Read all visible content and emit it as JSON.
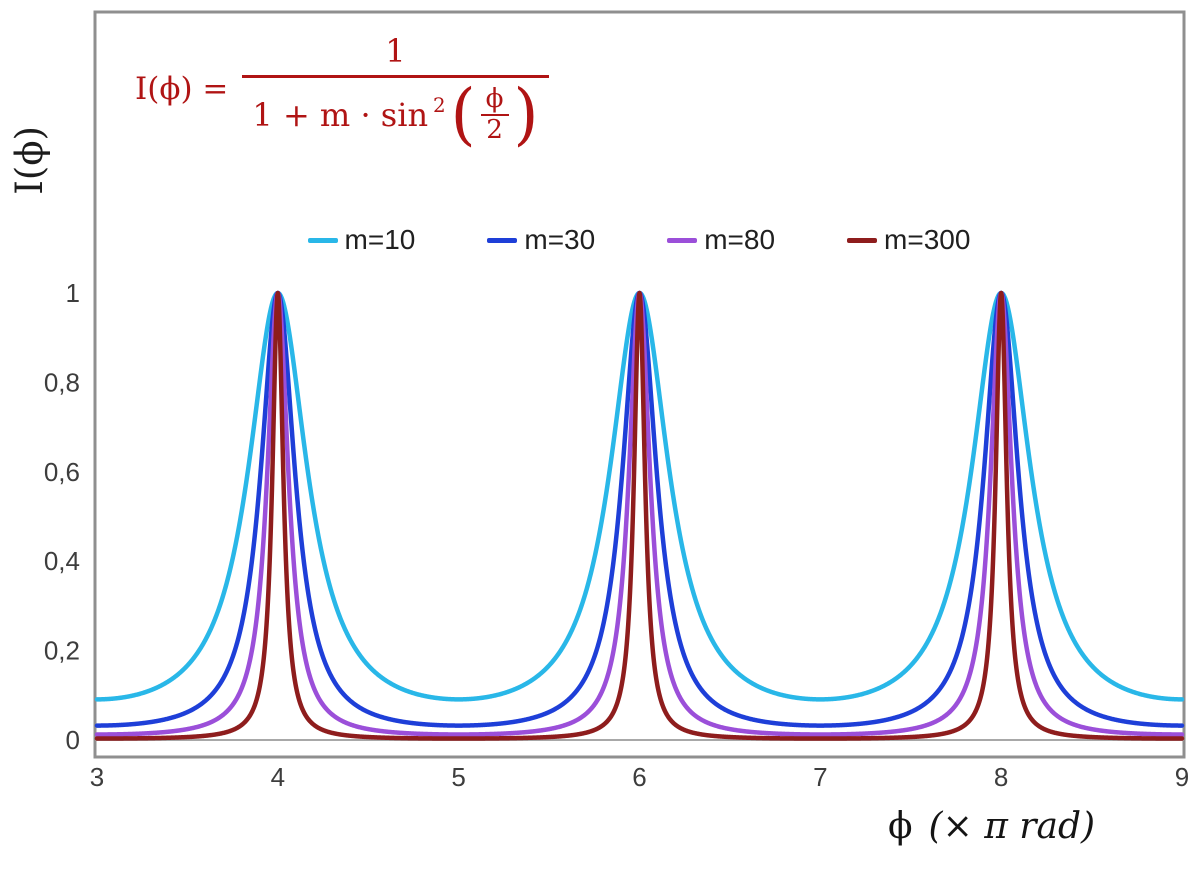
{
  "colors": {
    "formula": "#b01414",
    "plot_border": "#8f8f8f",
    "axis_line": "#a8a8a8",
    "tick_text": "#3d3d3d"
  },
  "formula": {
    "lhs": "I(ϕ) =",
    "numerator": "1",
    "denominator_lead": "1 + m · sin",
    "power": "2",
    "paren_open": "(",
    "paren_close": ")",
    "inner_numerator": "ϕ",
    "inner_denominator": "2"
  },
  "chart_data": {
    "type": "line",
    "title": "",
    "function": "I(phi) = 1 / (1 + m * sin^2(phi/2)), x axis in units of pi rad",
    "x_range": [
      3,
      9
    ],
    "ylim": [
      0,
      1
    ],
    "ylabel": "I(ϕ)",
    "xlabel": "ϕ (× π rad)",
    "xlabel_parts": {
      "symbol": "ϕ",
      "unit": "(× π rad)"
    },
    "x_ticks": {
      "labels": [
        "3",
        "4",
        "5",
        "6",
        "7",
        "8",
        "9"
      ],
      "values": [
        3,
        4,
        5,
        6,
        7,
        8,
        9
      ]
    },
    "y_ticks": {
      "labels": [
        "0",
        "0,2",
        "0,4",
        "0,6",
        "0,8",
        "1"
      ],
      "values": [
        0,
        0.2,
        0.4,
        0.6,
        0.8,
        1
      ]
    },
    "grid": false,
    "legend_position": "top-center",
    "peaks_at_x": [
      4,
      6,
      8
    ],
    "peak_value": 1,
    "series": [
      {
        "name": "m=10",
        "m": 10,
        "color": "#29b7e8"
      },
      {
        "name": "m=30",
        "m": 30,
        "color": "#1e3fd8"
      },
      {
        "name": "m=80",
        "m": 80,
        "color": "#9b4fd9"
      },
      {
        "name": "m=300",
        "m": 300,
        "color": "#8e1d1d"
      }
    ]
  }
}
